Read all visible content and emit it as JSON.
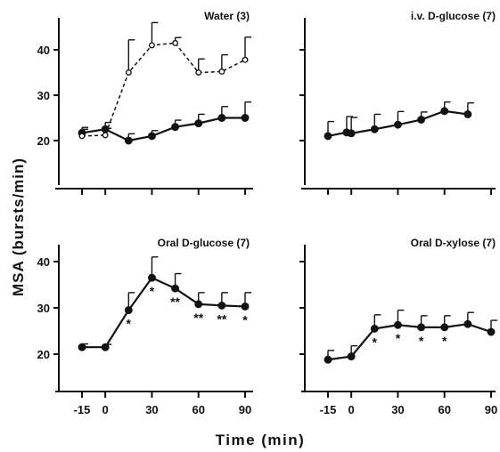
{
  "ylabel": "MSA (bursts/min)",
  "xlabel": "Time (min)",
  "chart_data": [
    {
      "type": "line",
      "title": "Water (3)",
      "xlim": [
        -20,
        92
      ],
      "ylim": [
        13,
        47
      ],
      "yticks": [
        20,
        30,
        40
      ],
      "xticks": [
        -15,
        0,
        30,
        60,
        90
      ],
      "show_x_tick_labels": false,
      "show_y_tick_labels": true,
      "series": [
        {
          "style": "solid-filled",
          "x": [
            -15,
            0,
            15,
            30,
            45,
            60,
            75,
            90
          ],
          "y": [
            21.7,
            22.5,
            20.0,
            21.0,
            23.0,
            23.8,
            25.0,
            25.0
          ],
          "err": [
            1.2,
            1.5,
            1.5,
            1.2,
            1.5,
            2.0,
            2.5,
            3.5
          ]
        },
        {
          "style": "dashed-open",
          "x": [
            -15,
            0,
            15,
            30,
            45,
            60,
            75,
            90
          ],
          "y": [
            21.0,
            21.2,
            35.0,
            41.0,
            41.5,
            35.0,
            35.2,
            37.8
          ],
          "err": [
            1.5,
            1.5,
            7.2,
            5.0,
            1.2,
            3.0,
            3.7,
            5.0
          ]
        }
      ],
      "stars": []
    },
    {
      "type": "line",
      "title": "i.v. D-glucose (7)",
      "xlim": [
        -20,
        92
      ],
      "ylim": [
        13,
        47
      ],
      "yticks": [
        20,
        30,
        40
      ],
      "xticks": [
        -15,
        0,
        30,
        60,
        90
      ],
      "show_x_tick_labels": false,
      "show_y_tick_labels": false,
      "series": [
        {
          "style": "solid-filled",
          "x": [
            -15,
            -3,
            0,
            15,
            30,
            45,
            60,
            75
          ],
          "y": [
            21.0,
            21.8,
            21.6,
            22.5,
            23.5,
            24.6,
            26.5,
            25.8
          ],
          "err": [
            3.2,
            3.5,
            3.5,
            3.3,
            2.9,
            1.7,
            2.0,
            2.5
          ]
        }
      ],
      "stars": []
    },
    {
      "type": "line",
      "title": "Oral D-glucose (7)",
      "xlim": [
        -20,
        92
      ],
      "ylim": [
        13,
        47
      ],
      "yticks": [
        20,
        30,
        40
      ],
      "xticks": [
        -15,
        0,
        30,
        60,
        90
      ],
      "show_x_tick_labels": true,
      "show_y_tick_labels": true,
      "series": [
        {
          "style": "solid-filled",
          "x": [
            -15,
            0,
            15,
            30,
            45,
            60,
            75,
            90
          ],
          "y": [
            21.5,
            21.5,
            29.5,
            36.5,
            34.2,
            30.8,
            30.5,
            30.3
          ],
          "err": [
            0.7,
            0.6,
            3.8,
            4.5,
            3.2,
            2.5,
            2.8,
            3.0
          ]
        }
      ],
      "stars": [
        {
          "x": 15,
          "count": 1
        },
        {
          "x": 30,
          "count": 1
        },
        {
          "x": 45,
          "count": 2
        },
        {
          "x": 60,
          "count": 2
        },
        {
          "x": 75,
          "count": 2
        },
        {
          "x": 90,
          "count": 1
        }
      ]
    },
    {
      "type": "line",
      "title": "Oral D-xylose (7)",
      "xlim": [
        -20,
        92
      ],
      "ylim": [
        13,
        47
      ],
      "yticks": [
        20,
        30,
        40
      ],
      "xticks": [
        -15,
        0,
        30,
        60,
        90
      ],
      "show_x_tick_labels": true,
      "show_y_tick_labels": false,
      "series": [
        {
          "style": "solid-filled",
          "x": [
            -15,
            0,
            15,
            30,
            45,
            60,
            75,
            90
          ],
          "y": [
            18.8,
            19.5,
            25.5,
            26.3,
            25.8,
            25.8,
            26.5,
            24.8
          ],
          "err": [
            2.0,
            2.3,
            3.0,
            3.2,
            2.5,
            2.5,
            2.5,
            2.5
          ]
        }
      ],
      "stars": [
        {
          "x": 15,
          "count": 1
        },
        {
          "x": 30,
          "count": 1
        },
        {
          "x": 45,
          "count": 1
        },
        {
          "x": 60,
          "count": 1
        }
      ]
    }
  ]
}
